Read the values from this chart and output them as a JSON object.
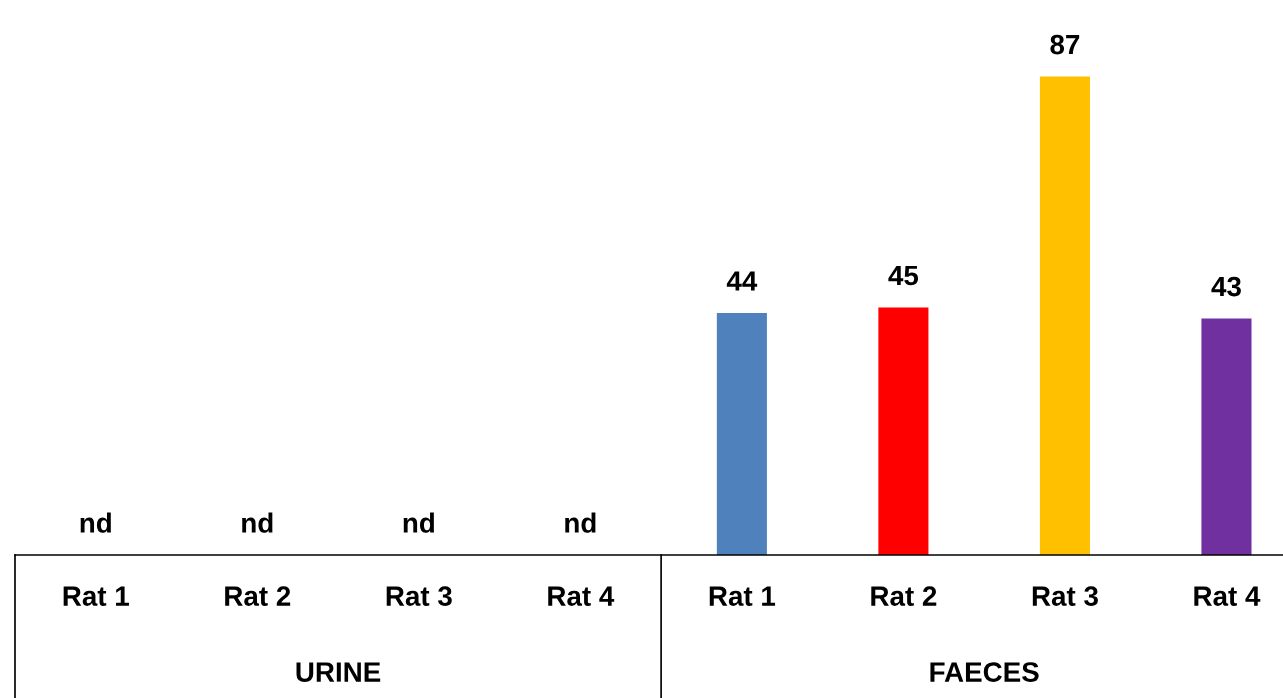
{
  "chart_data": {
    "type": "bar",
    "categories": [
      "Rat 1",
      "Rat 2",
      "Rat 3",
      "Rat 4",
      "Rat 1",
      "Rat 2",
      "Rat 3",
      "Rat 4"
    ],
    "values": [
      null,
      null,
      null,
      null,
      44,
      45,
      87,
      43
    ],
    "colors": [
      null,
      null,
      null,
      null,
      "#4f81bd",
      "#ff0000",
      "#ffc000",
      "#7030a0"
    ],
    "value_labels": [
      "nd",
      "nd",
      "nd",
      "nd",
      "44",
      "45",
      "87",
      "43"
    ],
    "annotations": [
      "URINE",
      "FAECES"
    ],
    "grid": false,
    "legend": false
  }
}
